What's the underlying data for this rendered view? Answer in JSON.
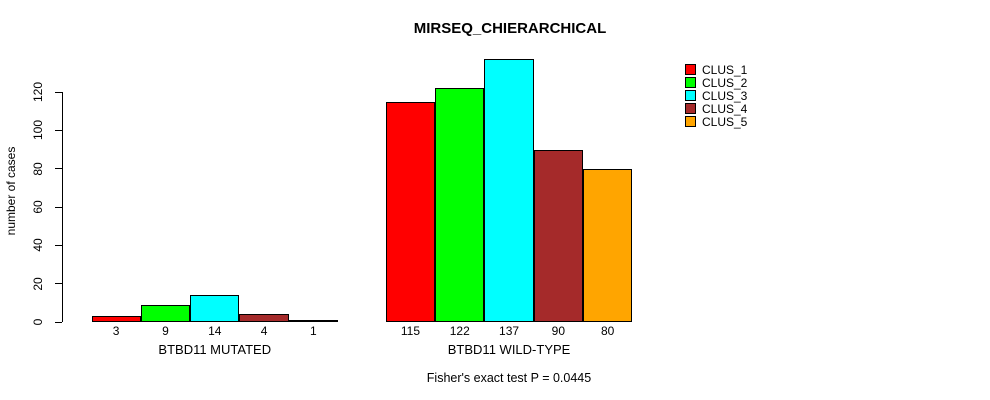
{
  "chart_data": {
    "type": "bar",
    "title": "MIRSEQ_CHIERARCHICAL",
    "xlabel": "",
    "ylabel": "number of cases",
    "annotation": "Fisher's exact test P = 0.0445",
    "groups": [
      {
        "label": "BTBD11 MUTATED",
        "values": [
          3,
          9,
          14,
          4,
          1
        ]
      },
      {
        "label": "BTBD11 WILD-TYPE",
        "values": [
          115,
          122,
          137,
          90,
          80
        ]
      }
    ],
    "series_names": [
      "CLUS_1",
      "CLUS_2",
      "CLUS_3",
      "CLUS_4",
      "CLUS_5"
    ],
    "colors": [
      "#ff0000",
      "#00ff00",
      "#00ffff",
      "#a52a2a",
      "#ffa500"
    ],
    "yticks": [
      0,
      20,
      40,
      60,
      80,
      100,
      120
    ],
    "ylim": [
      0,
      140
    ],
    "bar_value_labels_shown": true,
    "grid": false,
    "legend_position": "right",
    "background_color": "#ffffff",
    "text_color": "#000000"
  }
}
